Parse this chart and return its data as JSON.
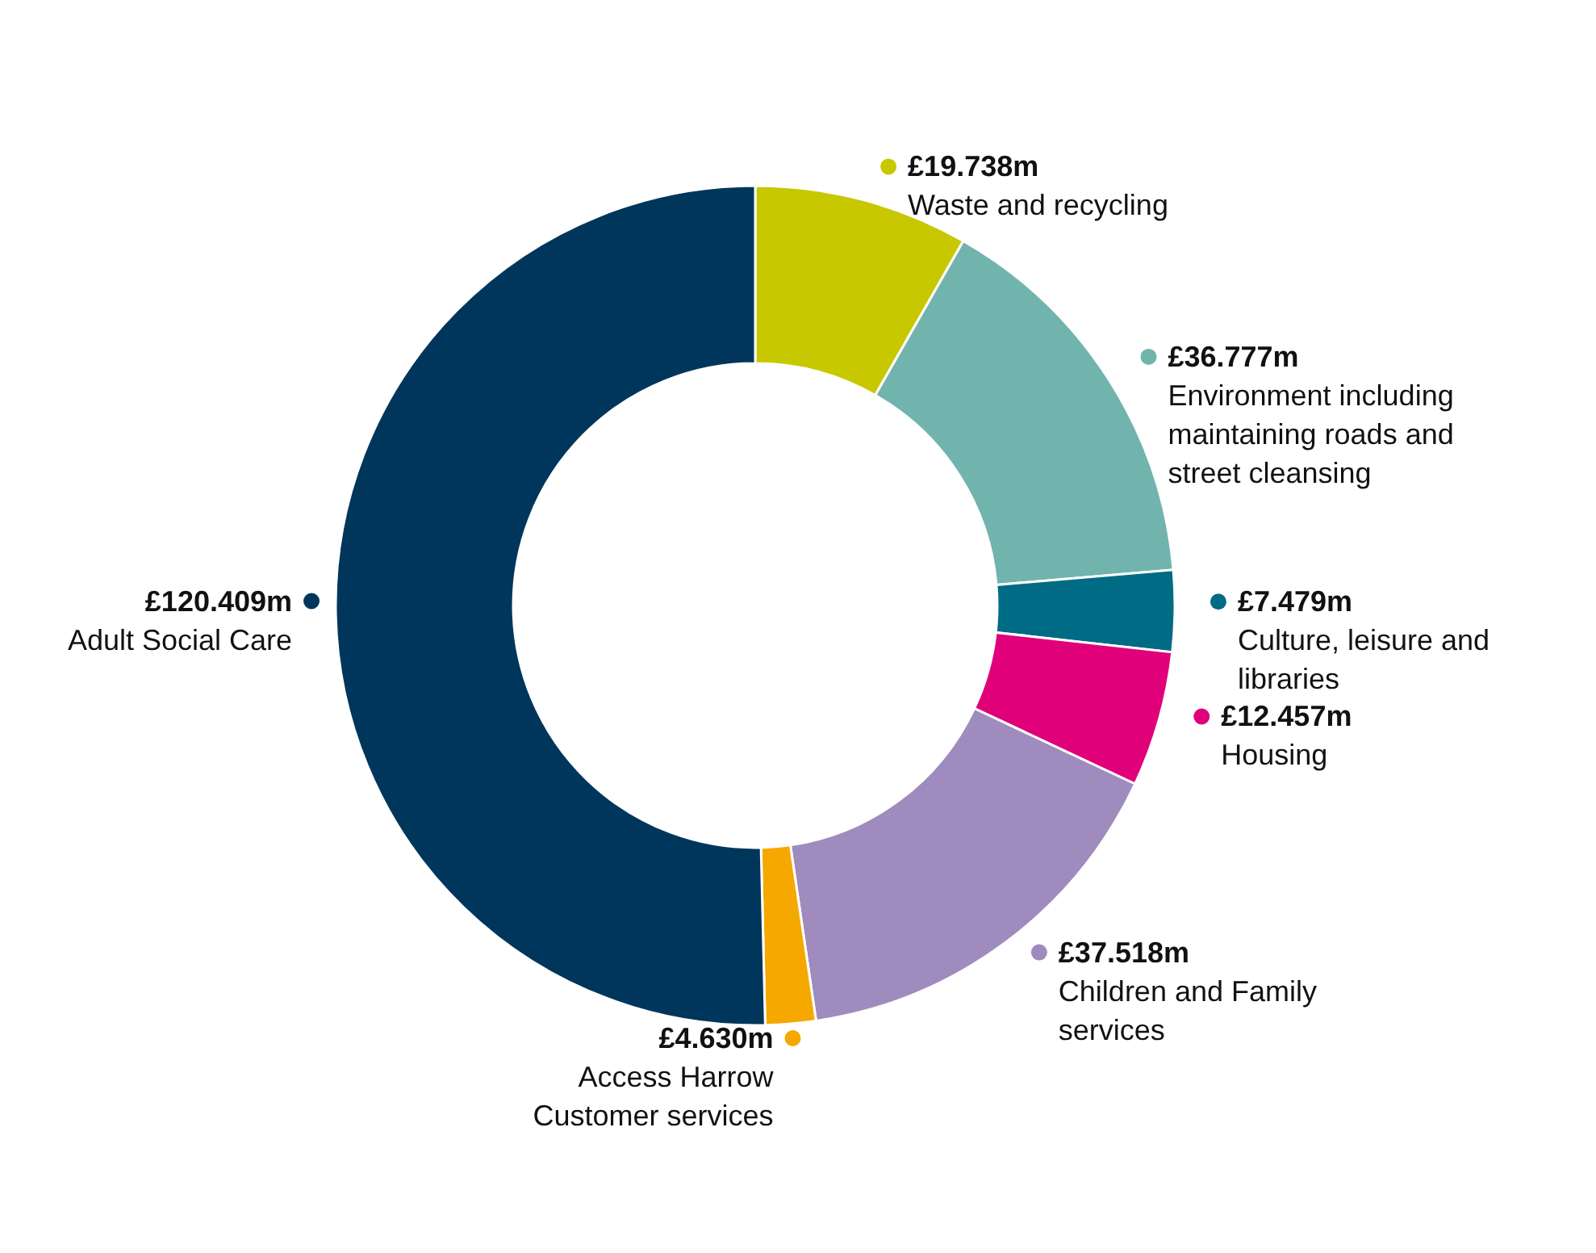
{
  "chart_data": {
    "type": "donut",
    "categories": [
      "Waste and recycling",
      "Environment including maintaining roads and street cleansing",
      "Culture, leisure and libraries",
      "Housing",
      "Children and Family services",
      "Access Harrow Customer services",
      "Adult Social Care"
    ],
    "values": [
      19.738,
      36.777,
      7.479,
      12.457,
      37.518,
      4.63,
      120.409
    ],
    "value_labels": [
      "£19.738m",
      "£36.777m",
      "£7.479m",
      "£12.457m",
      "£37.518m",
      "£4.630m",
      "£120.409m"
    ],
    "legend": "right",
    "colors": [
      "#c8c800",
      "#71b4ae",
      "#006b85",
      "#e0007a",
      "#9f8bbd",
      "#f5a800",
      "#00365b"
    ]
  }
}
